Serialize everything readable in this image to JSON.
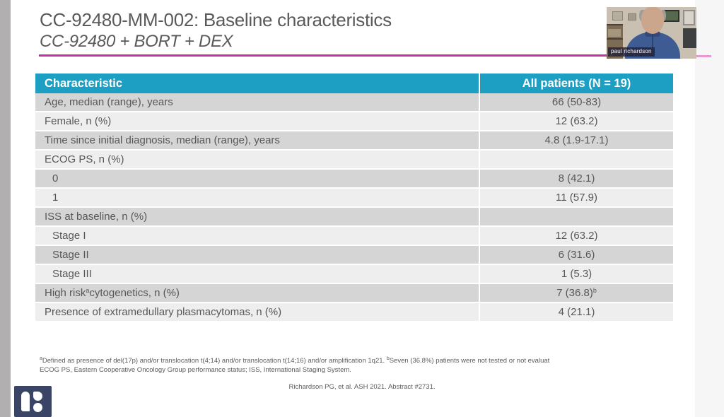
{
  "slide": {
    "title_line1": "CC-92480-MM-002: Baseline characteristics",
    "title_line2": "CC-92480 + BORT + DEX",
    "accent_color": "#c4309f"
  },
  "webcam": {
    "name_label": "paul richardson"
  },
  "table": {
    "header_bg": "#1d9fc4",
    "headers": [
      "Characteristic",
      "All patients (N = 19)"
    ],
    "rows": [
      {
        "indent": false,
        "label": [
          {
            "text": "Age, median (range), years"
          }
        ],
        "value": [
          {
            "text": "66 (50-83)"
          }
        ]
      },
      {
        "indent": false,
        "label": [
          {
            "text": "Female, n (%)"
          }
        ],
        "value": [
          {
            "text": "12 (63.2)"
          }
        ]
      },
      {
        "indent": false,
        "label": [
          {
            "text": "Time since initial diagnosis, median (range), years"
          }
        ],
        "value": [
          {
            "text": "4.8 (1.9-17.1)"
          }
        ]
      },
      {
        "indent": false,
        "label": [
          {
            "text": "ECOG PS, n (%)"
          }
        ],
        "value": []
      },
      {
        "indent": true,
        "label": [
          {
            "text": "0"
          }
        ],
        "value": [
          {
            "text": "8 (42.1)"
          }
        ]
      },
      {
        "indent": true,
        "label": [
          {
            "text": "1"
          }
        ],
        "value": [
          {
            "text": "11 (57.9)"
          }
        ]
      },
      {
        "indent": false,
        "label": [
          {
            "text": "ISS at baseline, n (%)"
          }
        ],
        "value": []
      },
      {
        "indent": true,
        "label": [
          {
            "text": "Stage I"
          }
        ],
        "value": [
          {
            "text": "12 (63.2)"
          }
        ]
      },
      {
        "indent": true,
        "label": [
          {
            "text": "Stage II"
          }
        ],
        "value": [
          {
            "text": "6 (31.6)"
          }
        ]
      },
      {
        "indent": true,
        "label": [
          {
            "text": "Stage III"
          }
        ],
        "value": [
          {
            "text": "1 (5.3)"
          }
        ]
      },
      {
        "indent": false,
        "label": [
          {
            "text": "High risk"
          },
          {
            "sup": "a"
          },
          {
            "text": " cytogenetics, n (%)"
          }
        ],
        "value": [
          {
            "text": "7 (36.8)"
          },
          {
            "sup": "b"
          }
        ]
      },
      {
        "indent": false,
        "label": [
          {
            "text": "Presence of extramedullary plasmacytomas, n (%)"
          }
        ],
        "value": [
          {
            "text": "4 (21.1)"
          }
        ]
      }
    ]
  },
  "footnotes": {
    "line1_segments": [
      {
        "sup": "a"
      },
      {
        "text": "Defined as presence of del(17p) and/or translocation t(4;14) and/or translocation t(14;16) and/or amplification 1q21. "
      },
      {
        "sup": "b"
      },
      {
        "text": "Seven (36.8%) patients were not tested or not evaluat"
      }
    ],
    "line2": "ECOG PS, Eastern Cooperative Oncology Group performance status; ISS, International Staging System."
  },
  "citation": "Richardson PG, et al. ASH 2021. Abstract #2731."
}
